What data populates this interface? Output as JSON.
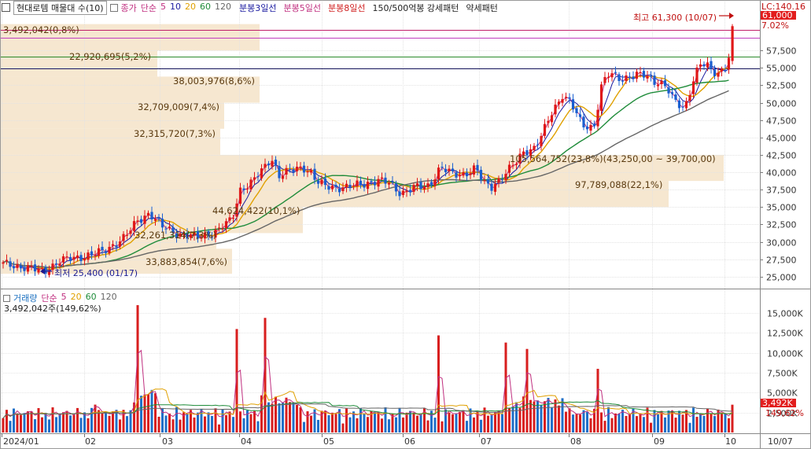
{
  "header": {
    "title": "현대로템 매물대 수(10)",
    "items": [
      {
        "label": "종가",
        "color": "#c03080"
      },
      {
        "label": "단순",
        "color": "#c03080"
      },
      {
        "label": "5",
        "color": "#c03080"
      },
      {
        "label": "10",
        "color": "#1a1aa0"
      },
      {
        "label": "20",
        "color": "#e0a000"
      },
      {
        "label": "60",
        "color": "#1f8c3a"
      },
      {
        "label": "120",
        "color": "#666666"
      }
    ],
    "patterns": [
      {
        "label": "분봉3일선",
        "color": "#1a1aa0"
      },
      {
        "label": "분봉5일선",
        "color": "#c03080"
      },
      {
        "label": "분봉8일선",
        "color": "#d02020"
      },
      {
        "label": "150/500억봉 강세패턴",
        "color": "#222222"
      },
      {
        "label": "약세패턴",
        "color": "#222222"
      }
    ]
  },
  "price_scale": {
    "lc_label": "LC:140.16",
    "current_price": "61,000",
    "current_pct": "7.02%",
    "ticks": [
      "57,500",
      "55,000",
      "52,500",
      "50,000",
      "47,500",
      "45,000",
      "42,500",
      "40,000",
      "37,500",
      "35,000",
      "32,500",
      "30,000",
      "27,500",
      "25,000"
    ]
  },
  "annotations": {
    "high": "최고 61,300 (10/07)",
    "low": "최저 25,400 (01/17)"
  },
  "volume_panel": {
    "legend_items": [
      {
        "label": "거래량",
        "color": "#1a6fbf"
      },
      {
        "label": "단순",
        "color": "#c03080"
      },
      {
        "label": "5",
        "color": "#c03080"
      },
      {
        "label": "20",
        "color": "#e0a000"
      },
      {
        "label": "60",
        "color": "#1f8c3a"
      },
      {
        "label": "120",
        "color": "#666666"
      }
    ],
    "volume_text": "3,492,042주(149,62%)",
    "ticks": [
      "15,000K",
      "12,500K",
      "10,000K",
      "7,500K",
      "5,000K",
      "2,500K"
    ],
    "current_volume": "3,492K",
    "current_pct": "149,62%"
  },
  "x_axis": {
    "labels": [
      "2024/01",
      "02",
      "03",
      "04",
      "05",
      "06",
      "07",
      "08",
      "09",
      "10",
      "10/07"
    ]
  },
  "chart_data": {
    "type": "candlestick",
    "title": "현대로템 매물대 수(10)",
    "price_ylim": [
      24000,
      62500
    ],
    "volume_ylim": [
      0,
      16500
    ],
    "volume_profile": [
      {
        "range": [
          57500,
          61300
        ],
        "label": "3,492,042(0,8%)"
      },
      {
        "range": [
          53750,
          57500
        ],
        "label": "22,920,695(5,2%)"
      },
      {
        "range": [
          50000,
          53750
        ],
        "label": "38,003,976(8,6%)"
      },
      {
        "range": [
          46250,
          50000
        ],
        "label": "32,709,009(7,4%)"
      },
      {
        "range": [
          42500,
          46250
        ],
        "label": "32,315,720(7,3%)"
      },
      {
        "range": [
          38750,
          42500
        ],
        "label": "105,564,752(23,8%)(43,250,00 ~ 39,700,00)"
      },
      {
        "range": [
          35000,
          38750
        ],
        "label": "97,789,088(22,1%)"
      },
      {
        "range": [
          31250,
          35000
        ],
        "label": "44,624,422(10,1%)"
      },
      {
        "range": [
          29000,
          31250
        ],
        "label": "32,261,314(7,3%)"
      },
      {
        "range": [
          25400,
          29000
        ],
        "label": "33,883,854(7,6%)"
      }
    ],
    "horizontal_lines": [
      {
        "value": 60200,
        "color": "#c0206a"
      },
      {
        "value": 59000,
        "color": "#c040c0"
      },
      {
        "value": 56200,
        "color": "#2a8a2a"
      },
      {
        "value": 54800,
        "color": "#1a1a60"
      }
    ],
    "price_series": [
      {
        "label": "2024/01",
        "close": 26500,
        "volume": 1600
      },
      {
        "label": "01/17",
        "close": 25400,
        "volume": 1200
      },
      {
        "label": "02",
        "close": 27500,
        "volume": 1900
      },
      {
        "label": "02",
        "close": 28800,
        "volume": 2200
      },
      {
        "label": "03",
        "close": 34000,
        "volume": 5000
      },
      {
        "label": "03",
        "close": 31500,
        "volume": 3200
      },
      {
        "label": "03",
        "close": 30500,
        "volume": 2400
      },
      {
        "label": "04",
        "close": 39500,
        "volume": 3200
      },
      {
        "label": "04",
        "close": 41000,
        "volume": 4500
      },
      {
        "label": "05",
        "close": 38000,
        "volume": 2400
      },
      {
        "label": "05",
        "close": 38500,
        "volume": 2000
      },
      {
        "label": "06",
        "close": 37000,
        "volume": 2000
      },
      {
        "label": "06",
        "close": 40500,
        "volume": 3000
      },
      {
        "label": "07",
        "close": 38000,
        "volume": 2200
      },
      {
        "label": "07",
        "close": 40000,
        "volume": 2600
      },
      {
        "label": "07",
        "close": 48000,
        "volume": 3800
      },
      {
        "label": "08",
        "close": 45500,
        "volume": 3000
      },
      {
        "label": "08",
        "close": 54000,
        "volume": 3100
      },
      {
        "label": "09",
        "close": 53500,
        "volume": 1800
      },
      {
        "label": "09",
        "close": 49000,
        "volume": 1700
      },
      {
        "label": "09",
        "close": 55000,
        "volume": 1800
      },
      {
        "label": "10",
        "close": 55500,
        "volume": 1700
      },
      {
        "label": "10/07",
        "close": 61000,
        "volume": 3492
      }
    ],
    "volume_spikes": [
      {
        "label": "02",
        "value": 3500
      },
      {
        "label": "03",
        "value": 16000
      },
      {
        "label": "04",
        "value": 13000
      },
      {
        "label": "04",
        "value": 14400
      },
      {
        "label": "06",
        "value": 12200
      },
      {
        "label": "07",
        "value": 11300
      },
      {
        "label": "07",
        "value": 10500
      },
      {
        "label": "08",
        "value": 8000
      }
    ]
  }
}
